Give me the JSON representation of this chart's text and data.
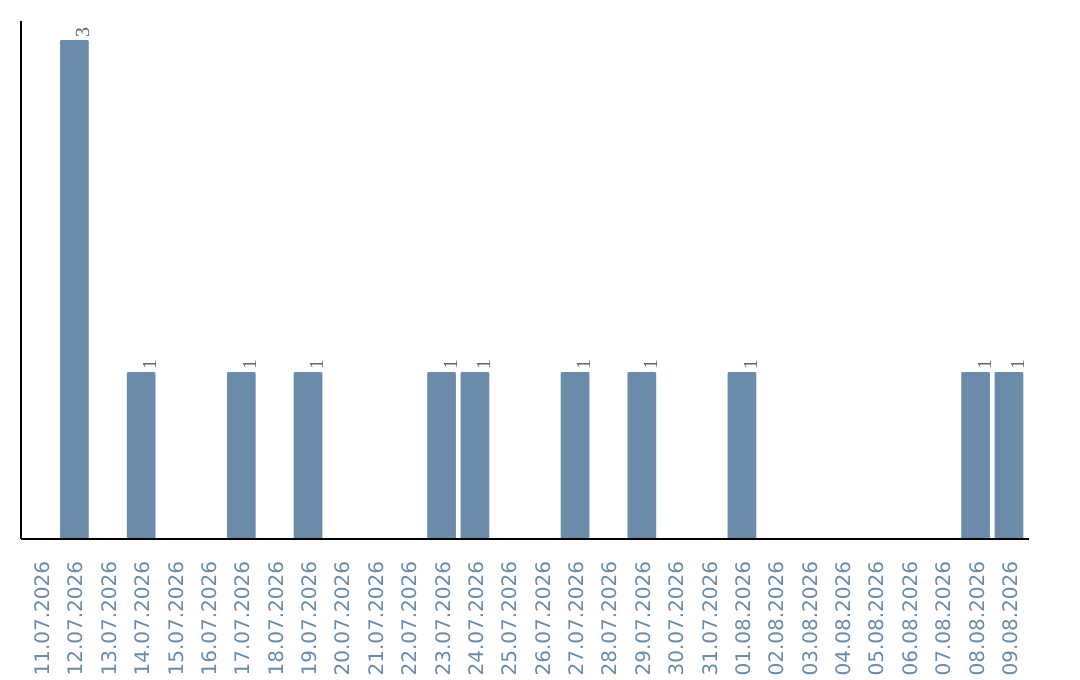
{
  "chart_data": {
    "type": "bar",
    "categories": [
      "11.07.2026",
      "12.07.2026",
      "13.07.2026",
      "14.07.2026",
      "15.07.2026",
      "16.07.2026",
      "17.07.2026",
      "18.07.2026",
      "19.07.2026",
      "20.07.2026",
      "21.07.2026",
      "22.07.2026",
      "23.07.2026",
      "24.07.2026",
      "25.07.2026",
      "26.07.2026",
      "27.07.2026",
      "28.07.2026",
      "29.07.2026",
      "30.07.2026",
      "31.07.2026",
      "01.08.2026",
      "02.08.2026",
      "03.08.2026",
      "04.08.2026",
      "05.08.2026",
      "06.08.2026",
      "07.08.2026",
      "08.08.2026",
      "09.08.2026"
    ],
    "values": [
      0,
      3,
      0,
      1,
      0,
      0,
      1,
      0,
      1,
      0,
      0,
      0,
      1,
      1,
      0,
      0,
      1,
      0,
      1,
      0,
      0,
      1,
      0,
      0,
      0,
      0,
      0,
      0,
      1,
      1
    ],
    "value_labels": [
      null,
      "3",
      null,
      "1",
      null,
      null,
      "1",
      null,
      "1",
      null,
      null,
      null,
      "1",
      "1",
      null,
      null,
      "1",
      null,
      "1",
      null,
      null,
      "1",
      null,
      null,
      null,
      null,
      null,
      null,
      "1",
      "1"
    ],
    "color": "#6a8caa",
    "grid": false,
    "tick_labels": "x"
  }
}
